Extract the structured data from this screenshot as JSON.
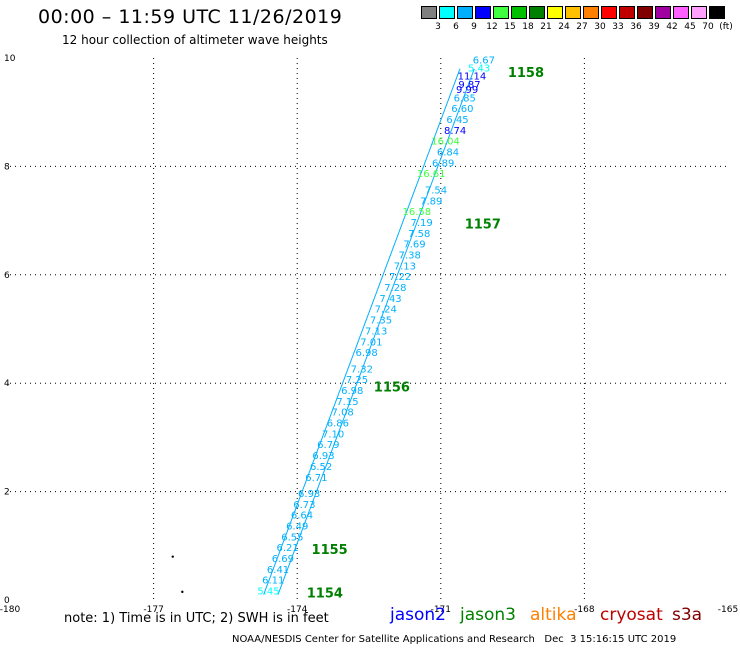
{
  "header": {
    "title": "00:00 – 11:59 UTC 11/26/2019",
    "subtitle": "12 hour collection of altimeter wave heights"
  },
  "legend": {
    "colors": [
      "#808080",
      "#00ffff",
      "#00b0ff",
      "#0000ff",
      "#40ff40",
      "#00c000",
      "#008000",
      "#ffff00",
      "#ffc000",
      "#ff8000",
      "#ff0000",
      "#c00000",
      "#800000",
      "#a000a0",
      "#ff60ff",
      "#ffa0ff",
      "#000000"
    ],
    "labels": [
      "3",
      "6",
      "9",
      "12",
      "15",
      "18",
      "21",
      "24",
      "27",
      "30",
      "33",
      "36",
      "39",
      "42",
      "45",
      "70",
      "(ft)"
    ]
  },
  "footer": {
    "note": "note: 1) Time is in UTC; 2) SWH is in feet",
    "satellites": [
      {
        "name": "jason2",
        "color": "#0000ff"
      },
      {
        "name": "jason3",
        "color": "#008000"
      },
      {
        "name": "altika",
        "color": "#ff8000"
      },
      {
        "name": "cryosat",
        "color": "#c00000"
      },
      {
        "name": "s3a",
        "color": "#800000"
      }
    ],
    "credit": "NOAA/NESDIS Center for Satellite Applications and Research   Dec  3 15:16:15 UTC 2019"
  },
  "chart_data": {
    "type": "scatter",
    "xlim": [
      -180,
      -165
    ],
    "ylim": [
      0,
      10
    ],
    "xticks": [
      "-180",
      "-177",
      "-174",
      "-171",
      "-168",
      "-165"
    ],
    "yticks": [
      "0",
      "2",
      "4",
      "6",
      "8",
      "10"
    ],
    "grid": true,
    "tracks": [
      {
        "satellite": "jason3",
        "color": "#00b0ff",
        "x_start": -174.7,
        "y_start": 0.1,
        "x_end": -170.6,
        "y_end": 9.8
      },
      {
        "satellite": "jason3",
        "color": "#00b0ff",
        "x_start": -174.4,
        "y_start": 0.1,
        "x_end": -170.3,
        "y_end": 9.8
      }
    ],
    "points": [
      {
        "x": -174.6,
        "y": 0.1,
        "swh": "5.45",
        "color": "#00ffff"
      },
      {
        "x": -174.5,
        "y": 0.3,
        "swh": "6.11",
        "color": "#00b0ff"
      },
      {
        "x": -174.4,
        "y": 0.5,
        "swh": "6.41",
        "color": "#00b0ff"
      },
      {
        "x": -174.3,
        "y": 0.7,
        "swh": "6.69",
        "color": "#00b0ff"
      },
      {
        "x": -174.2,
        "y": 0.9,
        "swh": "6.21",
        "color": "#00b0ff"
      },
      {
        "x": -174.1,
        "y": 1.1,
        "swh": "6.55",
        "color": "#00b0ff"
      },
      {
        "x": -174.0,
        "y": 1.3,
        "swh": "6.49",
        "color": "#00b0ff"
      },
      {
        "x": -173.9,
        "y": 1.5,
        "swh": "6.64",
        "color": "#00b0ff"
      },
      {
        "x": -173.85,
        "y": 1.7,
        "swh": "6.73",
        "color": "#00b0ff"
      },
      {
        "x": -173.75,
        "y": 1.9,
        "swh": "6.93",
        "color": "#00b0ff"
      },
      {
        "x": -173.6,
        "y": 2.2,
        "swh": "6.71",
        "color": "#00b0ff"
      },
      {
        "x": -173.5,
        "y": 2.4,
        "swh": "6.52",
        "color": "#00b0ff"
      },
      {
        "x": -173.45,
        "y": 2.6,
        "swh": "6.93",
        "color": "#00b0ff"
      },
      {
        "x": -173.35,
        "y": 2.8,
        "swh": "6.79",
        "color": "#00b0ff"
      },
      {
        "x": -173.25,
        "y": 3.0,
        "swh": "7.10",
        "color": "#00b0ff"
      },
      {
        "x": -173.15,
        "y": 3.2,
        "swh": "6.86",
        "color": "#00b0ff"
      },
      {
        "x": -173.05,
        "y": 3.4,
        "swh": "7.08",
        "color": "#00b0ff"
      },
      {
        "x": -172.95,
        "y": 3.6,
        "swh": "7.15",
        "color": "#00b0ff"
      },
      {
        "x": -172.85,
        "y": 3.8,
        "swh": "6.98",
        "color": "#00b0ff"
      },
      {
        "x": -172.75,
        "y": 4.0,
        "swh": "7.25",
        "color": "#00b0ff"
      },
      {
        "x": -172.65,
        "y": 4.2,
        "swh": "7.32",
        "color": "#00b0ff"
      },
      {
        "x": -172.55,
        "y": 4.5,
        "swh": "6.98",
        "color": "#00b0ff"
      },
      {
        "x": -172.45,
        "y": 4.7,
        "swh": "7.01",
        "color": "#00b0ff"
      },
      {
        "x": -172.35,
        "y": 4.9,
        "swh": "7.13",
        "color": "#00b0ff"
      },
      {
        "x": -172.25,
        "y": 5.1,
        "swh": "7.35",
        "color": "#00b0ff"
      },
      {
        "x": -172.15,
        "y": 5.3,
        "swh": "7.24",
        "color": "#00b0ff"
      },
      {
        "x": -172.05,
        "y": 5.5,
        "swh": "7.43",
        "color": "#00b0ff"
      },
      {
        "x": -171.95,
        "y": 5.7,
        "swh": "7.28",
        "color": "#00b0ff"
      },
      {
        "x": -171.85,
        "y": 5.9,
        "swh": "7.22",
        "color": "#00b0ff"
      },
      {
        "x": -171.75,
        "y": 6.1,
        "swh": "7.13",
        "color": "#00b0ff"
      },
      {
        "x": -171.65,
        "y": 6.3,
        "swh": "7.38",
        "color": "#00b0ff"
      },
      {
        "x": -171.55,
        "y": 6.5,
        "swh": "7.69",
        "color": "#00b0ff"
      },
      {
        "x": -171.45,
        "y": 6.7,
        "swh": "7.58",
        "color": "#00b0ff"
      },
      {
        "x": -171.4,
        "y": 6.9,
        "swh": "7.19",
        "color": "#00b0ff"
      },
      {
        "x": -171.5,
        "y": 7.1,
        "swh": "16.58",
        "color": "#40ff40"
      },
      {
        "x": -171.2,
        "y": 7.3,
        "swh": "7.89",
        "color": "#00b0ff"
      },
      {
        "x": -171.1,
        "y": 7.5,
        "swh": "7.54",
        "color": "#00b0ff"
      },
      {
        "x": -171.2,
        "y": 7.8,
        "swh": "16.61",
        "color": "#40ff40"
      },
      {
        "x": -170.95,
        "y": 8.0,
        "swh": "6.89",
        "color": "#00b0ff"
      },
      {
        "x": -170.85,
        "y": 8.2,
        "swh": "6.84",
        "color": "#00b0ff"
      },
      {
        "x": -170.9,
        "y": 8.4,
        "swh": "16.04",
        "color": "#40ff40"
      },
      {
        "x": -170.7,
        "y": 8.6,
        "swh": "8.74",
        "color": "#0000ff"
      },
      {
        "x": -170.65,
        "y": 8.8,
        "swh": "6.45",
        "color": "#00b0ff"
      },
      {
        "x": -170.55,
        "y": 9.0,
        "swh": "6.60",
        "color": "#00b0ff"
      },
      {
        "x": -170.5,
        "y": 9.2,
        "swh": "6.85",
        "color": "#00b0ff"
      },
      {
        "x": -170.45,
        "y": 9.35,
        "swh": "9.99",
        "color": "#0000ff"
      },
      {
        "x": -170.4,
        "y": 9.45,
        "swh": "9.87",
        "color": "#0000ff"
      },
      {
        "x": -170.35,
        "y": 9.6,
        "swh": "11.14",
        "color": "#0000ff"
      },
      {
        "x": -170.2,
        "y": 9.75,
        "swh": "5.43",
        "color": "#00ffff"
      },
      {
        "x": -170.1,
        "y": 9.9,
        "swh": "6.67",
        "color": "#00b0ff"
      }
    ],
    "time_labels": [
      {
        "x": -173.8,
        "y": 0.05,
        "text": "1154",
        "color": "#008000"
      },
      {
        "x": -173.7,
        "y": 0.85,
        "text": "1155",
        "color": "#008000"
      },
      {
        "x": -172.4,
        "y": 3.85,
        "text": "1156",
        "color": "#008000"
      },
      {
        "x": -170.5,
        "y": 6.85,
        "text": "1157",
        "color": "#008000"
      },
      {
        "x": -169.6,
        "y": 9.65,
        "text": "1158",
        "color": "#008000"
      }
    ],
    "markers": [
      {
        "x": -176.6,
        "y": 0.8
      },
      {
        "x": -176.4,
        "y": 0.15
      }
    ]
  }
}
